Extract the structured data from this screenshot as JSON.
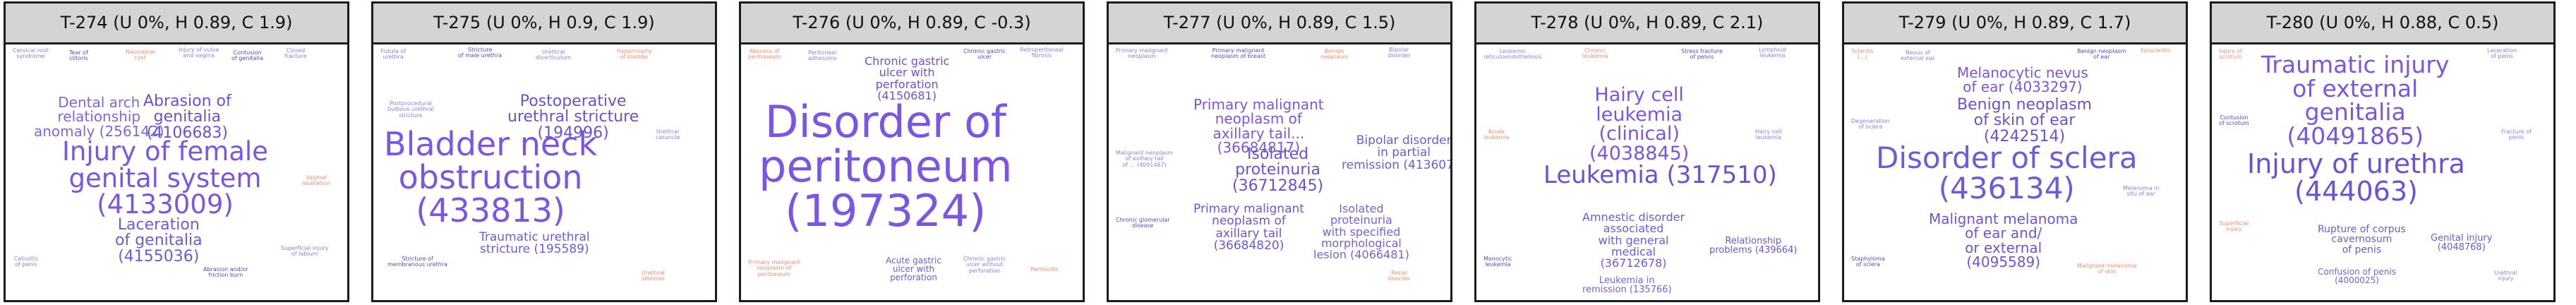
{
  "colors": {
    "primary_word": "#6f4fe0",
    "secondary_word": "#8f7fe6",
    "accent_word": "#ee8f72",
    "header_bg": "#d4d4d4",
    "border": "#1c1c1c"
  },
  "panels": [
    {
      "title": "T-274 (U 0%, H 0.89, C 1.9)",
      "words": [
        "Injury of female\ngenital system\n(4133009)",
        "Dental arch\nrelationship\nanomaly (256142)",
        "Abrasion of\ngenitalia\n(4106683)",
        "Laceration\nof genitalia\n(4155036)"
      ]
    },
    {
      "title": "T-275 (U 0%, H 0.9, C 1.9)",
      "words": [
        "Bladder neck\nobstruction\n(433813)",
        "Postoperative\nurethral stricture\n(194996)",
        "Traumatic urethral\nstricture (195589)"
      ]
    },
    {
      "title": "T-276 (U 0%, H 0.89, C -0.3)",
      "words": [
        "Disorder of\nperitoneum\n(197324)",
        "Chronic gastric\nulcer with\nperforation\n(4150681)",
        "Acute gastric\nulcer with\nperforation"
      ]
    },
    {
      "title": "T-277 (U 0%, H 0.89, C 1.5)",
      "words": [
        "Primary malignant\nneoplasm of\naxillary tail...\n(36684817)",
        "Isolated\nproteinuria\n(36712845)",
        "Bipolar disorder\nin partial\nremission (4136072)",
        "Primary malignant\nneoplasm of\naxillary tail\n(36684820)",
        "Isolated\nproteinuria\nwith specified\nmorphological\nlesion (4066481)"
      ]
    },
    {
      "title": "T-278 (U 0%, H 0.89, C 2.1)",
      "words": [
        "Hairy cell\nleukemia\n(clinical)\n(4038845)",
        "Leukemia (317510)",
        "Amnestic disorder\nassociated\nwith general\nmedical\n(36712678)",
        "Relationship\nproblems (439664)",
        "Leukemia in\nremission (135766)"
      ]
    },
    {
      "title": "T-279 (U 0%, H 0.89, C 1.7)",
      "words": [
        "Melanocytic nevus\nof ear (4033297)",
        "Benign neoplasm\nof skin of ear\n(4242514)",
        "Disorder of sclera\n(436134)",
        "Malignant melanoma\nof ear and/\nor external\n(4095589)"
      ]
    },
    {
      "title": "T-280 (U 0%, H 0.88, C 0.5)",
      "words": [
        "Traumatic injury\nof external\ngenitalia\n(40491865)",
        "Injury of urethra\n(444063)",
        "Rupture of corpus\ncavernosum\nof penis",
        "Genital injury\n(4048768)",
        "Confusion of penis\n(4000025)"
      ]
    }
  ]
}
